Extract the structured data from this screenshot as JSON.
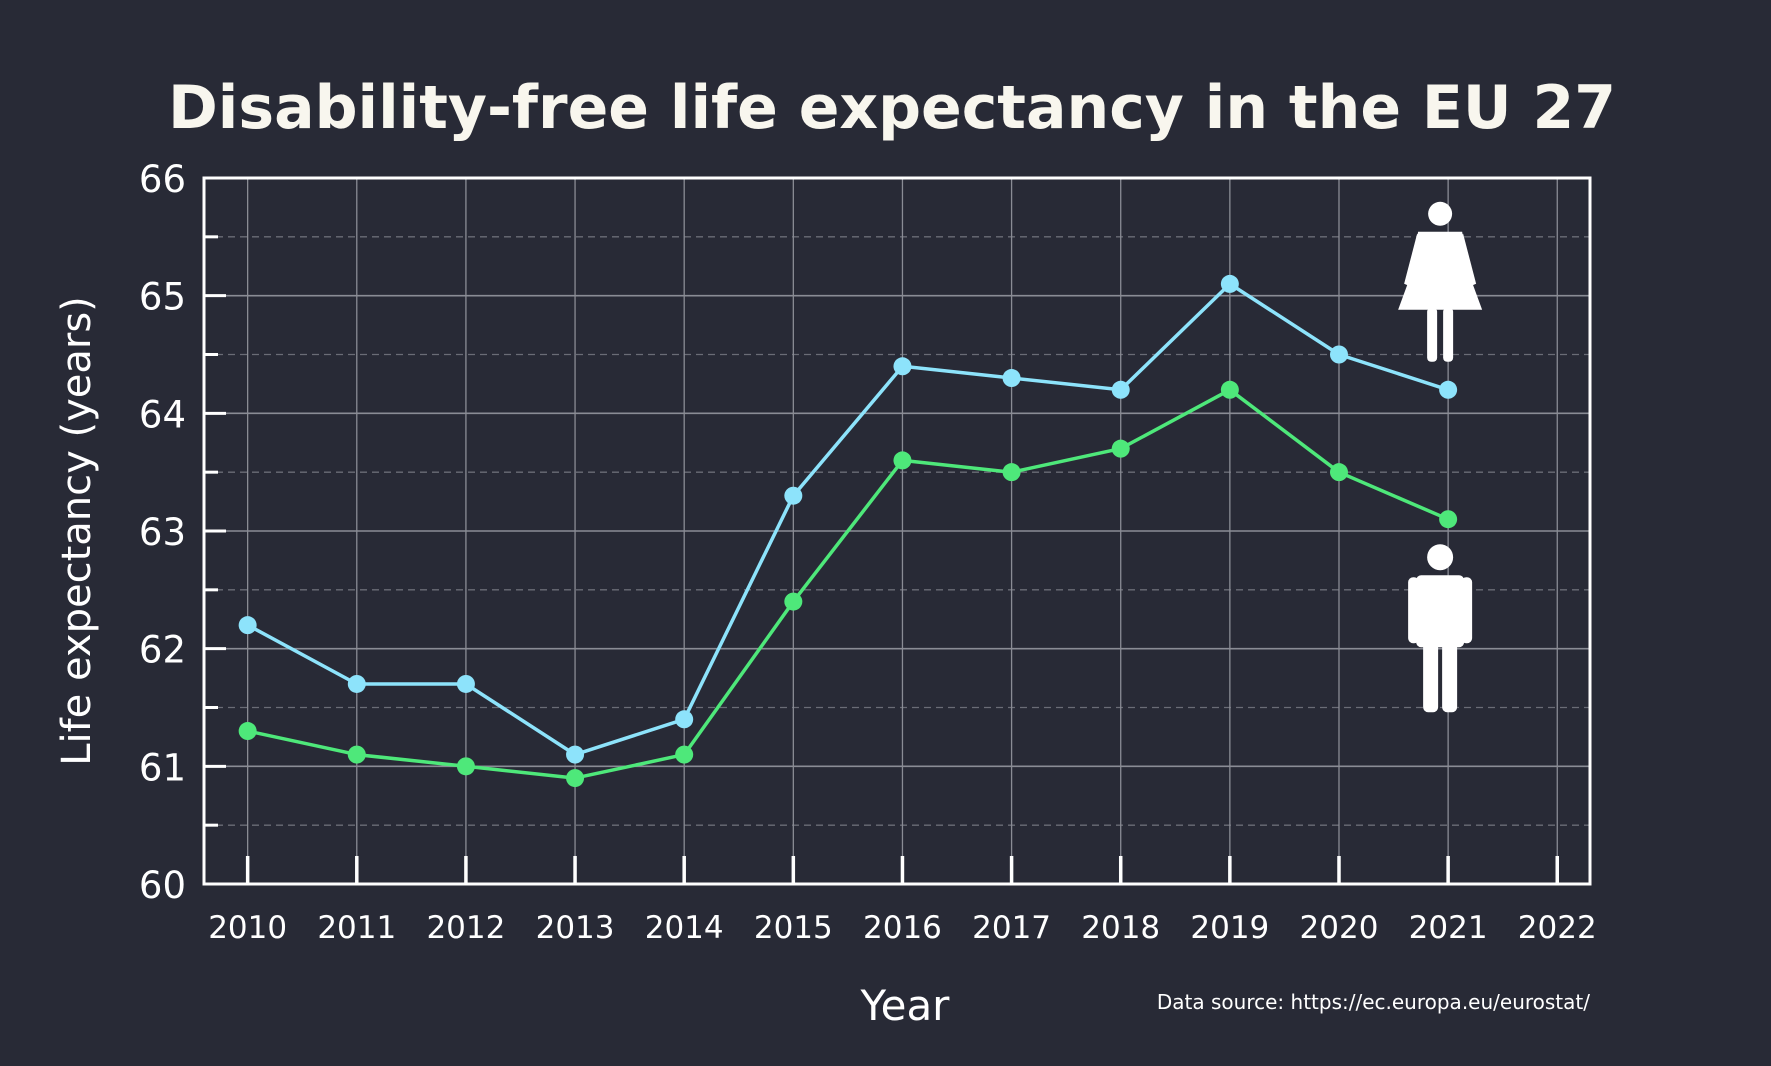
{
  "colors": {
    "background": "#282a36",
    "frame": "#ffffff",
    "text": "#ffffff",
    "grid_major": "#8a8c95",
    "grid_minor": "#6a6c76",
    "women": "#8de3fb",
    "men": "#4ee87a",
    "icon": "#ffffff"
  },
  "chart_data": {
    "type": "line",
    "title": "Disability-free life expectancy in the EU 27",
    "xlabel": "Year",
    "ylabel": "Life expectancy (years)",
    "source": "Data source: https://ec.europa.eu/eurostat/",
    "x": [
      2010,
      2011,
      2012,
      2013,
      2014,
      2015,
      2016,
      2017,
      2018,
      2019,
      2020,
      2021
    ],
    "xticks": [
      "2010",
      "2011",
      "2012",
      "2013",
      "2014",
      "2015",
      "2016",
      "2017",
      "2018",
      "2019",
      "2020",
      "2021",
      "2022"
    ],
    "yticks": [
      "60",
      "61",
      "62",
      "63",
      "64",
      "65",
      "66"
    ],
    "xlim": [
      2009.6,
      2022.3
    ],
    "ylim": [
      60,
      66
    ],
    "grid": true,
    "series": [
      {
        "key": "women",
        "icon": "woman-icon",
        "values": [
          62.2,
          61.7,
          61.7,
          61.1,
          61.4,
          63.3,
          64.4,
          64.3,
          64.2,
          65.1,
          64.5,
          64.2
        ]
      },
      {
        "key": "men",
        "icon": "man-icon",
        "values": [
          61.3,
          61.1,
          61.0,
          60.9,
          61.1,
          62.4,
          63.6,
          63.5,
          63.7,
          64.2,
          63.5,
          63.1
        ]
      }
    ]
  }
}
